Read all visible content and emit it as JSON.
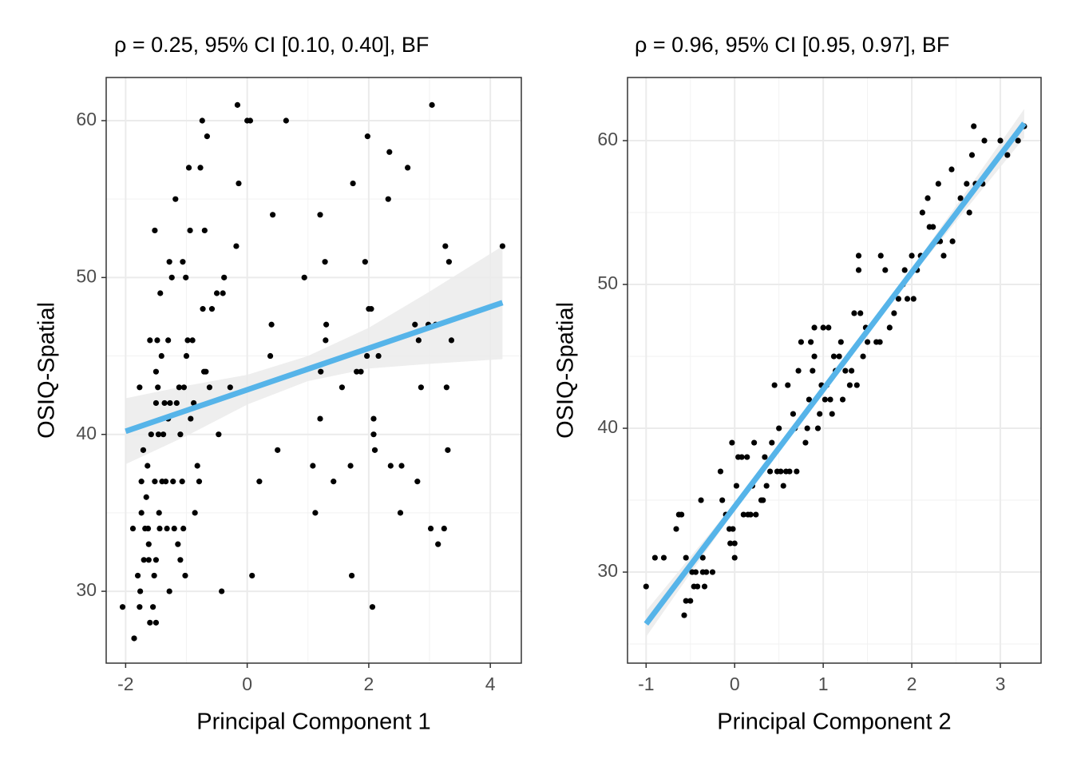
{
  "chart_data": [
    {
      "type": "scatter",
      "title": "ρ = 0.25, 95% CI [0.10, 0.40], BF",
      "x_label": "Principal Component 1",
      "y_label": "OSIQ-Spatial",
      "x": [
        -2.05,
        -1.88,
        -1.86,
        -1.77,
        -1.8,
        -1.77,
        -1.76,
        -1.74,
        -1.74,
        -1.71,
        -1.7,
        -1.68,
        -1.66,
        -1.64,
        -1.63,
        -1.62,
        -1.62,
        -1.6,
        -1.6,
        -1.58,
        -1.55,
        -1.53,
        -1.52,
        -1.52,
        -1.5,
        -1.5,
        -1.5,
        -1.5,
        -1.48,
        -1.47,
        -1.46,
        -1.45,
        -1.44,
        -1.43,
        -1.41,
        -1.4,
        -1.38,
        -1.36,
        -1.34,
        -1.32,
        -1.3,
        -1.3,
        -1.28,
        -1.28,
        -1.27,
        -1.24,
        -1.22,
        -1.2,
        -1.18,
        -1.16,
        -1.14,
        -1.12,
        -1.1,
        -1.1,
        -1.07,
        -1.06,
        -1.05,
        -1.04,
        -1.02,
        -1.01,
        -1.0,
        -0.98,
        -0.96,
        -0.94,
        -0.93,
        -0.9,
        -0.88,
        -0.86,
        -0.82,
        -0.79,
        -0.77,
        -0.74,
        -0.73,
        -0.71,
        -0.7,
        -0.68,
        -0.66,
        -0.62,
        -0.58,
        -0.5,
        -0.47,
        -0.42,
        -0.4,
        -0.38,
        -0.28,
        -0.18,
        -0.16,
        -0.14,
        0.0,
        0.08,
        0.05,
        0.2,
        0.38,
        0.4,
        0.42,
        0.5,
        0.64,
        0.94,
        1.08,
        1.12,
        1.2,
        1.2,
        1.21,
        1.28,
        1.29,
        1.3,
        1.42,
        1.56,
        1.7,
        1.72,
        1.74,
        1.8,
        1.87,
        1.94,
        1.97,
        1.98,
        2.0,
        2.04,
        2.06,
        2.08,
        2.08,
        2.1,
        2.16,
        2.32,
        2.34,
        2.36,
        2.52,
        2.54,
        2.64,
        2.76,
        2.8,
        2.82,
        2.86,
        2.98,
        3.02,
        3.04,
        3.1,
        3.14,
        3.24,
        3.26,
        3.28,
        3.3,
        3.32,
        3.36,
        4.2
      ],
      "values": [
        29,
        34,
        27,
        43,
        31,
        29,
        30,
        35,
        37,
        39,
        32,
        34,
        36,
        38,
        34,
        33,
        32,
        28,
        46,
        40,
        29,
        31,
        37,
        53,
        28,
        32,
        42,
        44,
        46,
        43,
        40,
        35,
        34,
        49,
        45,
        37,
        40,
        42,
        37,
        34,
        46,
        41,
        51,
        30,
        42,
        50,
        37,
        34,
        55,
        42,
        33,
        43,
        40,
        32,
        37,
        51,
        34,
        43,
        31,
        50,
        45,
        46,
        57,
        53,
        41,
        46,
        42,
        35,
        38,
        37,
        57,
        60,
        48,
        44,
        53,
        44,
        59,
        43,
        48,
        49,
        40,
        30,
        49,
        50,
        43,
        52,
        61,
        56,
        60,
        31,
        60,
        37,
        45,
        47,
        54,
        39,
        60,
        50,
        38,
        35,
        54,
        41,
        44,
        51,
        46,
        47,
        37,
        43,
        38,
        31,
        56,
        44,
        44,
        51,
        45,
        59,
        48,
        48,
        29,
        41,
        40,
        39,
        45,
        55,
        58,
        38,
        35,
        38,
        57,
        47,
        37,
        46,
        43,
        47,
        34,
        61,
        47,
        33,
        34,
        52,
        43,
        39,
        51,
        46,
        52
      ],
      "point_color": "#000000",
      "fit": {
        "x": [
          -2,
          4.2
        ],
        "y": [
          40.2,
          48.4
        ],
        "color": "#56b4e9"
      },
      "band": {
        "x": [
          -2,
          -1,
          0,
          1,
          2,
          3,
          4.2
        ],
        "lower": [
          38.1,
          39.9,
          41.9,
          43.4,
          44.2,
          44.5,
          44.8
        ],
        "upper": [
          42.3,
          43.1,
          43.8,
          45.0,
          46.8,
          49.1,
          52.0
        ],
        "color": "#ebebeb"
      },
      "xlim": [
        -2.32,
        4.51
      ],
      "ylim": [
        25.42,
        62.75
      ],
      "xticks": [
        -2,
        0,
        2,
        4
      ],
      "yticks": [
        30,
        40,
        50,
        60
      ],
      "grid": true
    },
    {
      "type": "scatter",
      "title": "ρ = 0.96, 95% CI [0.95, 0.97], BF",
      "x_label": "Principal Component 2",
      "y_label": "OSIQ-Spatial",
      "x": [
        -1.0,
        -0.9,
        -0.8,
        -0.66,
        -0.63,
        -0.6,
        -0.57,
        -0.55,
        -0.55,
        -0.5,
        -0.48,
        -0.46,
        -0.44,
        -0.42,
        -0.38,
        -0.36,
        -0.36,
        -0.34,
        -0.32,
        -0.25,
        -0.16,
        -0.14,
        -0.1,
        -0.06,
        -0.05,
        -0.03,
        -0.02,
        0.0,
        0.0,
        0.02,
        0.04,
        0.08,
        0.1,
        0.14,
        0.15,
        0.18,
        0.2,
        0.22,
        0.24,
        0.3,
        0.32,
        0.34,
        0.36,
        0.4,
        0.42,
        0.45,
        0.48,
        0.5,
        0.52,
        0.55,
        0.58,
        0.6,
        0.62,
        0.66,
        0.7,
        0.68,
        0.72,
        0.75,
        0.8,
        0.82,
        0.84,
        0.86,
        0.88,
        0.9,
        0.9,
        0.94,
        0.96,
        0.98,
        1.0,
        1.02,
        1.04,
        1.06,
        1.08,
        1.1,
        1.12,
        1.14,
        1.18,
        1.2,
        1.22,
        1.25,
        1.3,
        1.32,
        1.35,
        1.38,
        1.4,
        1.4,
        1.42,
        1.45,
        1.48,
        1.5,
        1.6,
        1.64,
        1.65,
        1.7,
        1.75,
        1.8,
        1.85,
        1.9,
        1.92,
        1.95,
        2.0,
        2.02,
        2.06,
        2.1,
        2.12,
        2.18,
        2.2,
        2.24,
        2.28,
        2.3,
        2.32,
        2.36,
        2.45,
        2.46,
        2.55,
        2.62,
        2.65,
        2.68,
        2.7,
        2.72,
        2.8,
        2.82,
        3.0,
        3.08,
        3.2,
        3.27
      ],
      "values": [
        29,
        31,
        31,
        33,
        34,
        34,
        27,
        31,
        28,
        28,
        30,
        29,
        30,
        29,
        35,
        31,
        30,
        29,
        30,
        30,
        37,
        35,
        34,
        33,
        32,
        39,
        33,
        31,
        32,
        36,
        38,
        38,
        34,
        38,
        34,
        34,
        36,
        39,
        34,
        35,
        35,
        38,
        36,
        37,
        39,
        43,
        37,
        40,
        37,
        36,
        37,
        43,
        37,
        41,
        37,
        40,
        44,
        46,
        39,
        40,
        42,
        46,
        44,
        45,
        47,
        40,
        41,
        43,
        47,
        42,
        43,
        47,
        42,
        41,
        45,
        44,
        45,
        46,
        42,
        44,
        43,
        44,
        48,
        43,
        52,
        51,
        48,
        45,
        47,
        46,
        46,
        46,
        52,
        51,
        47,
        48,
        49,
        50,
        51,
        49,
        52,
        49,
        51,
        52,
        55,
        56,
        54,
        54,
        53,
        57,
        53,
        52,
        58,
        53,
        56,
        57,
        55,
        59,
        61,
        57,
        57,
        60,
        60,
        59,
        60,
        61
      ],
      "point_color": "#000000",
      "fit": {
        "x": [
          -1,
          3.27
        ],
        "y": [
          26.4,
          61.2
        ],
        "color": "#56b4e9"
      },
      "band": {
        "x": [
          -1,
          0,
          1,
          2,
          3.27
        ],
        "lower": [
          25.5,
          34.3,
          42.5,
          50.6,
          60.2
        ],
        "upper": [
          27.3,
          34.8,
          42.9,
          51.1,
          62.2
        ],
        "color": "#ebebeb"
      },
      "xlim": [
        -1.21,
        3.46
      ],
      "ylim": [
        23.67,
        64.39
      ],
      "xticks": [
        -1,
        0,
        1,
        2,
        3
      ],
      "yticks": [
        30,
        40,
        50,
        60
      ],
      "grid": true
    }
  ]
}
